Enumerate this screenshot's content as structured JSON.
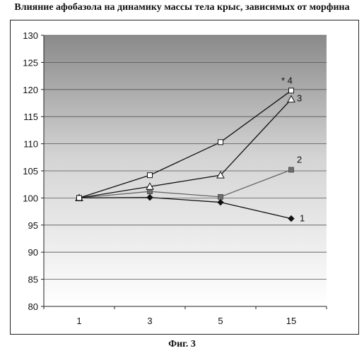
{
  "title": "Влияние афобазола на динамику массы тела крыс, зависимых от морфина",
  "caption": "Фиг. 3",
  "chart_data": {
    "type": "line",
    "categories": [
      "1",
      "3",
      "5",
      "15"
    ],
    "ylim": [
      80,
      130
    ],
    "yticks": [
      80,
      85,
      90,
      95,
      100,
      105,
      110,
      115,
      120,
      125,
      130
    ],
    "grid": true,
    "series": [
      {
        "name": "1",
        "marker": "diamond",
        "color": "#111111",
        "values": [
          100,
          100.1,
          99.2,
          96.2
        ],
        "label": "1"
      },
      {
        "name": "2",
        "marker": "square-filled",
        "color": "#666666",
        "values": [
          100,
          101.2,
          100.2,
          105.2
        ],
        "label": "2"
      },
      {
        "name": "3",
        "marker": "triangle",
        "color": "#111111",
        "values": [
          100,
          102.1,
          104.2,
          118.2
        ],
        "label": "3"
      },
      {
        "name": "4",
        "marker": "square-open",
        "color": "#111111",
        "values": [
          100,
          104.2,
          110.3,
          119.8
        ],
        "label": "* 4"
      }
    ]
  }
}
